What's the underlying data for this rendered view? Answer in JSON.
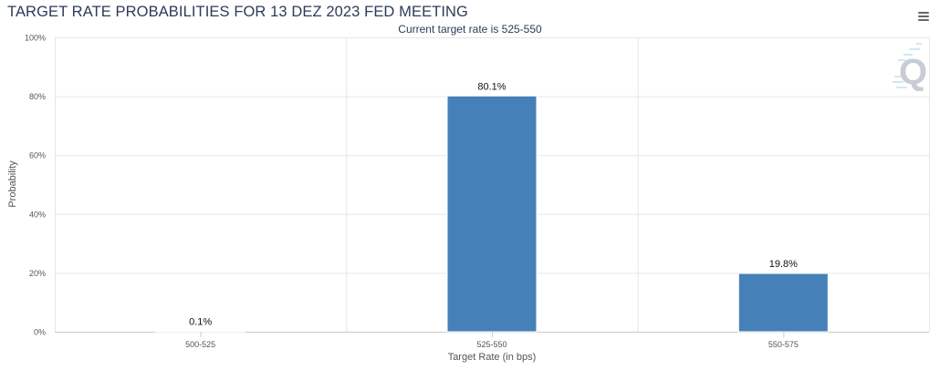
{
  "chart_data": {
    "type": "bar",
    "title": "TARGET RATE PROBABILITIES FOR 13 DEZ 2023 FED MEETING",
    "subtitle": "Current target rate is 525-550",
    "categories": [
      "500-525",
      "525-550",
      "550-575"
    ],
    "values": [
      0.1,
      80.1,
      19.8
    ],
    "data_labels": [
      "0.1%",
      "80.1%",
      "19.8%"
    ],
    "xlabel": "Target Rate (in bps)",
    "ylabel": "Probability",
    "ylim": [
      0,
      100
    ],
    "yticks": [
      "0%",
      "20%",
      "40%",
      "60%",
      "80%",
      "100%"
    ],
    "ytick_values": [
      0,
      20,
      40,
      60,
      80,
      100
    ],
    "grid": true,
    "bar_color": "#4580b8"
  },
  "icons": {
    "menu": "hamburger-menu-icon",
    "watermark": "Q"
  }
}
